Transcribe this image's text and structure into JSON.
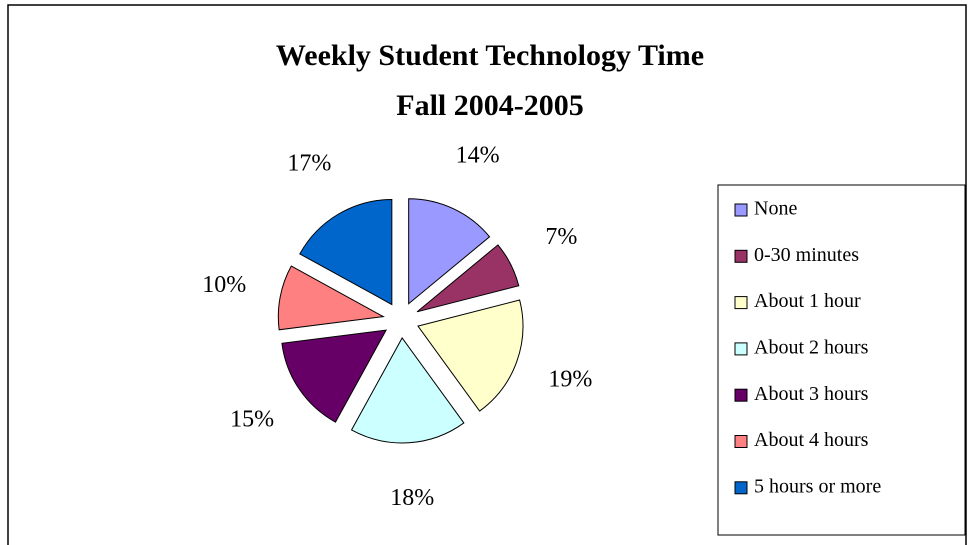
{
  "chart_data": {
    "type": "pie",
    "title": "Weekly Student Technology Time",
    "subtitle": "Fall 2004-2005",
    "categories": [
      "None",
      "0-30 minutes",
      "About 1 hour",
      "About 2 hours",
      "About 3 hours",
      "About 4 hours",
      "5 hours or more"
    ],
    "values": [
      14,
      7,
      19,
      18,
      15,
      10,
      17
    ],
    "value_labels": [
      "14%",
      "7%",
      "19%",
      "18%",
      "15%",
      "10%",
      "17%"
    ],
    "colors": [
      "#9999ff",
      "#993366",
      "#ffffcc",
      "#ccffff",
      "#660066",
      "#ff8080",
      "#0066cc"
    ],
    "exploded": true,
    "legend": "right"
  }
}
